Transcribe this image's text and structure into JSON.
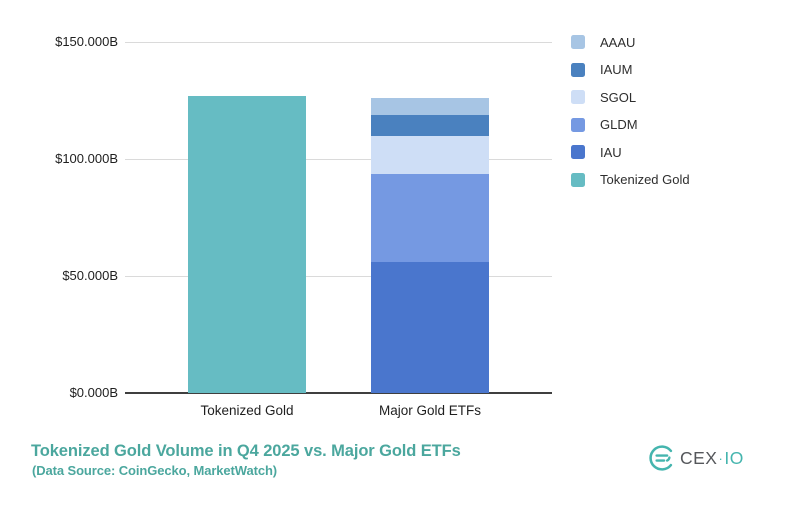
{
  "chart_data": {
    "type": "bar",
    "stacked": true,
    "categories": [
      "Tokenized Gold",
      "Major Gold ETFs"
    ],
    "series": [
      {
        "name": "Tokenized Gold",
        "color": "#66bcc3",
        "values": [
          126.8,
          0
        ]
      },
      {
        "name": "IAU",
        "color": "#4a76cd",
        "values": [
          0,
          55.7
        ]
      },
      {
        "name": "GLDM",
        "color": "#7599e2",
        "values": [
          0,
          37.6
        ]
      },
      {
        "name": "SGOL",
        "color": "#cedef6",
        "values": [
          0,
          16.3
        ]
      },
      {
        "name": "IAUM",
        "color": "#4a81bf",
        "values": [
          0,
          9.2
        ]
      },
      {
        "name": "AAAU",
        "color": "#a7c5e4",
        "values": [
          0,
          7.3
        ]
      }
    ],
    "title": "Tokenized Gold Volume in Q4 2025 vs. Major Gold ETFs",
    "subtitle": "(Data Source: CoinGecko, MarketWatch)",
    "xlabel": "",
    "ylabel": "",
    "ylim": [
      0,
      150
    ],
    "yticks": [
      {
        "label": "$150.000B",
        "value": 150
      },
      {
        "label": "$100.000B",
        "value": 100
      },
      {
        "label": "$50.000B",
        "value": 50
      },
      {
        "label": "$0.000B",
        "value": 0
      }
    ],
    "grid": "horizontal",
    "legend_position": "right"
  },
  "legend": {
    "items": [
      {
        "label": "AAAU",
        "color": "#a7c5e4"
      },
      {
        "label": "IAUM",
        "color": "#4a81bf"
      },
      {
        "label": "SGOL",
        "color": "#cedef6"
      },
      {
        "label": "GLDM",
        "color": "#7599e2"
      },
      {
        "label": "IAU",
        "color": "#4a76cd"
      },
      {
        "label": "Tokenized Gold",
        "color": "#66bcc3"
      }
    ]
  },
  "footer": {
    "title": "Tokenized Gold Volume in Q4 2025 vs. Major Gold ETFs",
    "subtitle": "(Data Source: CoinGecko, MarketWatch)",
    "accent_color": "#4ba79e"
  },
  "logo": {
    "brand": "CEX",
    "separator": "·",
    "suffix": "IO",
    "icon_color": "#45b5ae",
    "text_color": "#55575b"
  }
}
